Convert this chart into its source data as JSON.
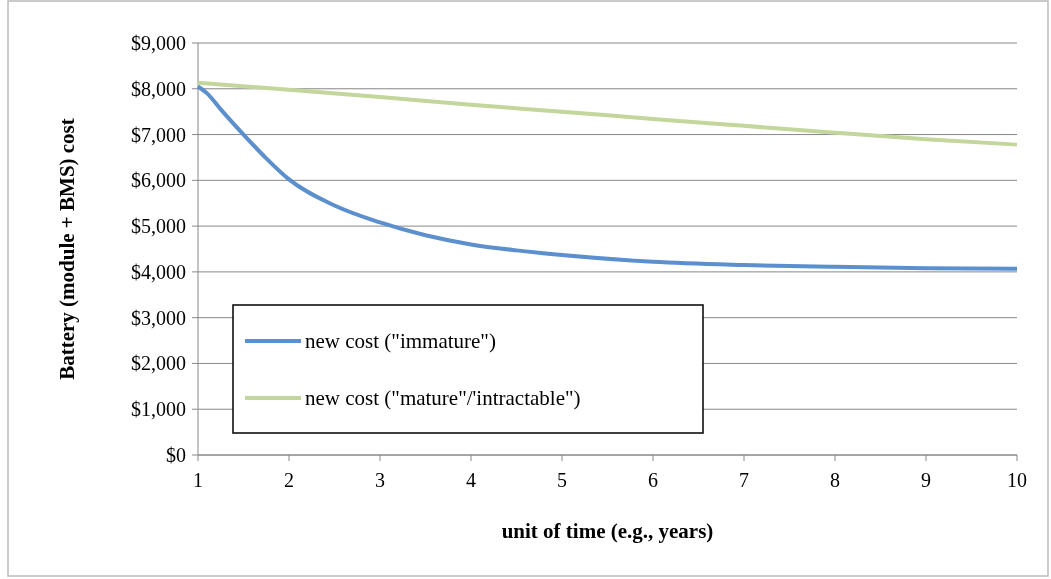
{
  "chart_data": {
    "type": "line",
    "xlabel": "unit of time (e.g., years)",
    "ylabel": "Battery (module + BMS) cost",
    "xlim": [
      1,
      10
    ],
    "xticks": [
      1,
      2,
      3,
      4,
      5,
      6,
      7,
      8,
      9,
      10
    ],
    "ylim": [
      0,
      9000
    ],
    "yticks": [
      {
        "value": 0,
        "label": "$0"
      },
      {
        "value": 1000,
        "label": "$1,000"
      },
      {
        "value": 2000,
        "label": "$2,000"
      },
      {
        "value": 3000,
        "label": "$3,000"
      },
      {
        "value": 4000,
        "label": "$4,000"
      },
      {
        "value": 5000,
        "label": "$5,000"
      },
      {
        "value": 6000,
        "label": "$6,000"
      },
      {
        "value": 7000,
        "label": "$7,000"
      },
      {
        "value": 8000,
        "label": "$8,000"
      },
      {
        "value": 9000,
        "label": "$9,000"
      }
    ],
    "grid": "y",
    "legend": "bottom left",
    "marker": "none",
    "line_style": "solid",
    "series": [
      {
        "name": "new cost (\"immature\")",
        "color": "#5b8fce",
        "x": [
          1,
          1.1,
          1.25,
          1.5,
          1.75,
          2,
          2.5,
          3,
          3.5,
          4,
          4.5,
          5,
          6,
          7,
          8,
          9,
          10
        ],
        "values": [
          8050,
          7900,
          7550,
          7000,
          6480,
          6020,
          5450,
          5080,
          4800,
          4600,
          4470,
          4370,
          4220,
          4150,
          4110,
          4080,
          4070
        ]
      },
      {
        "name": "new cost (\"mature\"/'intractable\")",
        "color": "#c3d69b",
        "x": [
          1,
          2,
          3,
          4,
          5,
          6,
          7,
          8,
          9,
          10
        ],
        "values": [
          8130,
          7980,
          7820,
          7650,
          7500,
          7340,
          7190,
          7040,
          6900,
          6780
        ]
      }
    ]
  }
}
